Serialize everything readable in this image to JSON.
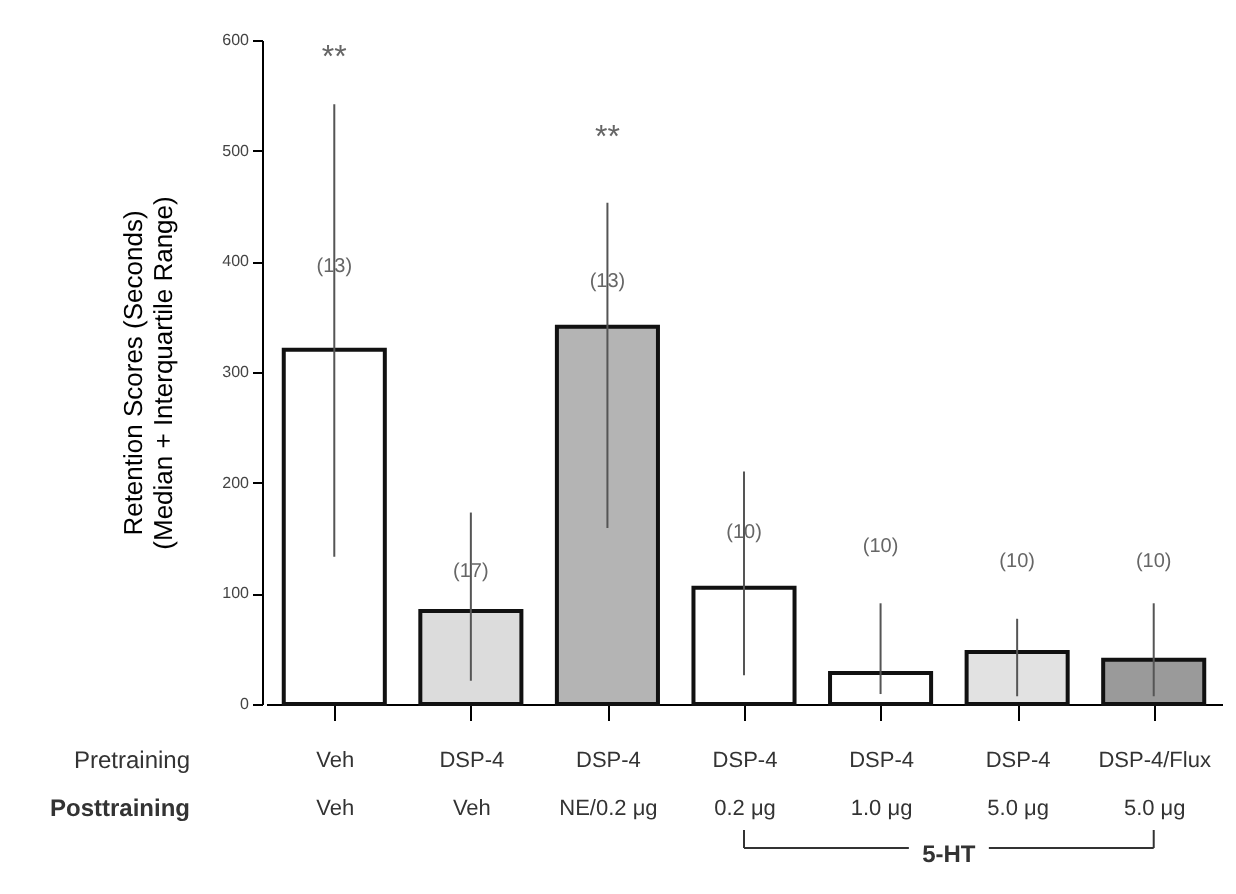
{
  "chart_data": {
    "type": "bar",
    "ylabel": "Retention Scores (Seconds)\n(Median + Interquartile Range)",
    "categories": [
      "Veh\nVeh",
      "DSP-4\nVeh",
      "DSP-4\nNE/0.2 μg",
      "DSP-4\n0.2 μg",
      "DSP-4\n1.0 μg",
      "DSP-4\n5.0 μg",
      "DSP-4/Flux\n5.0 μg"
    ],
    "values": [
      320,
      84,
      341,
      105,
      28,
      47,
      40
    ],
    "errors": [
      [
        133,
        542
      ],
      [
        21,
        173
      ],
      [
        159,
        453
      ],
      [
        26,
        210
      ],
      [
        9,
        91
      ],
      [
        7,
        77
      ],
      [
        7,
        91
      ]
    ],
    "colors": [
      "#ffffff",
      "#dcdcdc",
      "#b4b4b4",
      "#ffffff",
      "#ffffff",
      "#e2e2e2",
      "#9a9a9a"
    ],
    "ylim": [
      0,
      600
    ],
    "yticks": [
      0,
      100,
      200,
      300,
      400,
      500,
      600
    ],
    "grid": false,
    "annotations": [
      "Pretraining",
      "Posttraining",
      "5-HT",
      "**",
      "(13)",
      "(17)",
      "**",
      "(13)",
      "(10)",
      "(10)",
      "(10)",
      "(10)"
    ]
  }
}
